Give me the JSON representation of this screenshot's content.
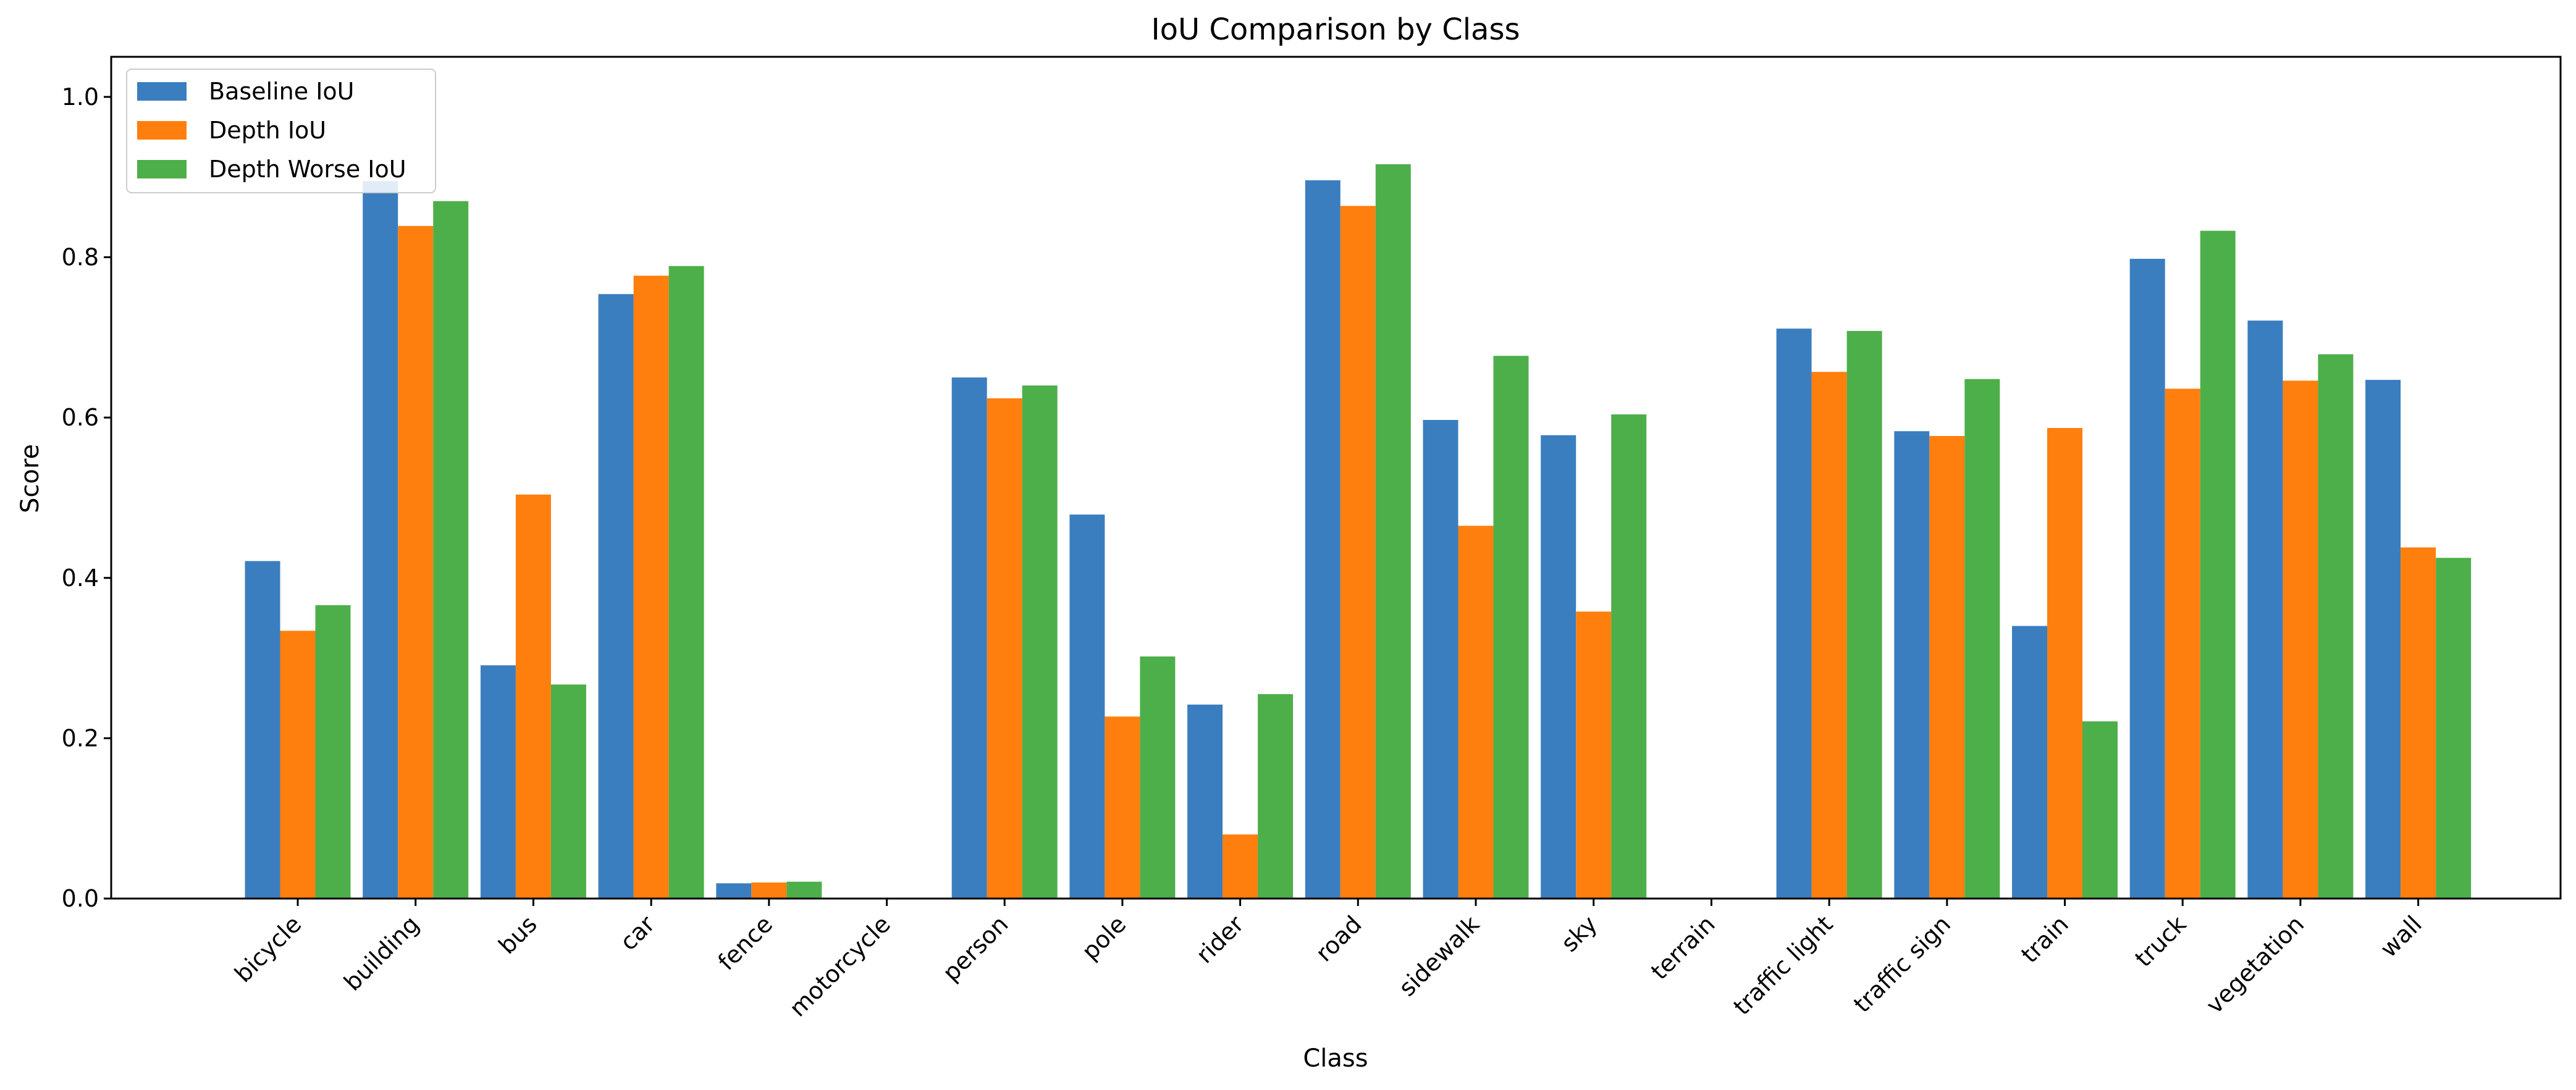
{
  "chart_data": {
    "type": "bar",
    "title": "IoU Comparison by Class",
    "xlabel": "Class",
    "ylabel": "Score",
    "ylim": [
      0,
      1.05
    ],
    "yticks": [
      "0.0",
      "0.2",
      "0.4",
      "0.6",
      "0.8",
      "1.0"
    ],
    "grid": false,
    "legend_position": "top-left",
    "categories": [
      "bicycle",
      "building",
      "bus",
      "car",
      "fence",
      "motorcycle",
      "person",
      "pole",
      "rider",
      "road",
      "sidewalk",
      "sky",
      "terrain",
      "traffic light",
      "traffic sign",
      "train",
      "truck",
      "vegetation",
      "wall"
    ],
    "series": [
      {
        "name": "Baseline IoU",
        "color": "#3a7ebf",
        "values": [
          0.421,
          0.895,
          0.291,
          0.754,
          0.019,
          0.0,
          0.65,
          0.479,
          0.242,
          0.896,
          0.597,
          0.578,
          0.0,
          0.711,
          0.583,
          0.34,
          0.798,
          0.721,
          0.647
        ]
      },
      {
        "name": "Depth IoU",
        "color": "#ff7f0e",
        "values": [
          0.334,
          0.839,
          0.504,
          0.777,
          0.02,
          0.0,
          0.624,
          0.227,
          0.08,
          0.864,
          0.465,
          0.358,
          0.0,
          0.657,
          0.577,
          0.587,
          0.636,
          0.646,
          0.438
        ]
      },
      {
        "name": "Depth Worse IoU",
        "color": "#4daf4a",
        "values": [
          0.366,
          0.87,
          0.267,
          0.789,
          0.021,
          0.0,
          0.64,
          0.302,
          0.255,
          0.916,
          0.677,
          0.604,
          0.0,
          0.708,
          0.648,
          0.221,
          0.833,
          0.679,
          0.425
        ]
      }
    ]
  }
}
